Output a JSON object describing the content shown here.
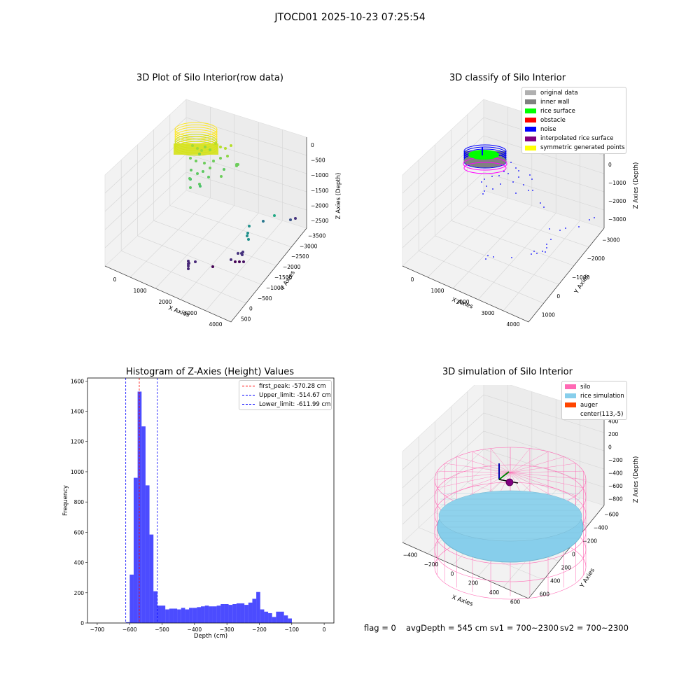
{
  "figure": {
    "suptitle": "JTOCD01 2025-10-23 07:25:54",
    "footer": {
      "flag": "flag = 0",
      "avg": "avgDepth = 545 cm",
      "sv1": "sv1 = 700~2300",
      "sv2": "sv2 = 700~2300"
    }
  },
  "colors": {
    "hist_bar": "#0000ff",
    "peak_line": "#ff0000",
    "limit_line": "#0000ff",
    "silo": "#ff69b4",
    "rice": "#87ceeb",
    "auger": "#ff4500",
    "classify": {
      "original": "#b0b0b0",
      "inner_wall": "#808080",
      "rice_surface": "#00ff00",
      "obstacle": "#ff0000",
      "noise": "#0000ff",
      "interpolated": "#800080",
      "symmetric": "#ffff00"
    }
  },
  "chart_data": [
    {
      "type": "scatter",
      "title": "3D Plot of Silo Interior(row data)",
      "xlabel": "X Axies",
      "ylabel": "Y Axies",
      "zlabel": "Z Axies (Depth)",
      "x_ticks": [
        "0",
        "1000",
        "2000",
        "3000",
        "4000"
      ],
      "y_ticks": [
        "500",
        "0",
        "−500",
        "−1000",
        "−1500",
        "−2000",
        "−2500",
        "−3000",
        "−3500"
      ],
      "z_ticks": [
        "0",
        "−500",
        "−1000",
        "−1500",
        "−2000",
        "−2500"
      ],
      "colormap": "viridis (by depth)"
    },
    {
      "type": "scatter",
      "title": "3D classify of Silo Interior",
      "xlabel": "X Axies",
      "ylabel": "Y Axies",
      "zlabel": "Z Axies (Depth)",
      "x_ticks": [
        "0",
        "1000",
        "2000",
        "3000",
        "4000"
      ],
      "y_ticks": [
        "1000",
        "0",
        "−1000",
        "−2000",
        "−3000"
      ],
      "z_ticks": [
        "1000",
        "0",
        "−1000",
        "−2000",
        "−3000"
      ],
      "legend": [
        {
          "label": "original data",
          "color": "#b0b0b0"
        },
        {
          "label": "inner wall",
          "color": "#808080"
        },
        {
          "label": "rice surface",
          "color": "#00ff00"
        },
        {
          "label": "obstacle",
          "color": "#ff0000"
        },
        {
          "label": "noise",
          "color": "#0000ff"
        },
        {
          "label": "interpolated rice surface",
          "color": "#800080"
        },
        {
          "label": "symmetric generated points",
          "color": "#ffff00"
        }
      ]
    },
    {
      "type": "bar",
      "title": "Histogram of Z-Axies (Height) Values",
      "xlabel": "Depth (cm)",
      "ylabel": "Frequency",
      "xlim": [
        -730,
        30
      ],
      "ylim": [
        0,
        1620
      ],
      "x_ticks": [
        "−700",
        "−600",
        "−500",
        "−400",
        "−300",
        "−200",
        "−100",
        "0"
      ],
      "y_ticks": [
        "0",
        "200",
        "400",
        "600",
        "800",
        "1000",
        "1200",
        "1400",
        "1600"
      ],
      "bin_start": -612,
      "bin_width": 12.2,
      "values": [
        5,
        320,
        960,
        1530,
        1300,
        910,
        585,
        210,
        115,
        115,
        90,
        95,
        95,
        90,
        100,
        90,
        100,
        100,
        105,
        110,
        115,
        110,
        110,
        115,
        125,
        125,
        120,
        125,
        130,
        130,
        120,
        135,
        160,
        205,
        90,
        75,
        65,
        40,
        75,
        75,
        50,
        30
      ],
      "lines": [
        {
          "label": "first_peak: -570.28 cm",
          "x": -570.28,
          "color": "#ff0000"
        },
        {
          "label": "Upper_limit: -514.67 cm",
          "x": -514.67,
          "color": "#0000ff"
        },
        {
          "label": "Lower_limit: -611.99 cm",
          "x": -611.99,
          "color": "#0000ff"
        }
      ]
    },
    {
      "type": "scatter",
      "title": "3D simulation of Silo Interior",
      "xlabel": "X Axies",
      "ylabel": "Y Axies",
      "zlabel": "Z Axies (Depth)",
      "x_ticks": [
        "−400",
        "−200",
        "0",
        "200",
        "400",
        "600"
      ],
      "y_ticks": [
        "600",
        "400",
        "200",
        "0",
        "−200",
        "−400",
        "−600"
      ],
      "z_ticks": [
        "400",
        "200",
        "0",
        "−200",
        "−400",
        "−600",
        "−800"
      ],
      "legend": [
        {
          "label": "silo",
          "color": "#ff69b4"
        },
        {
          "label": "rice simulation",
          "color": "#87ceeb"
        },
        {
          "label": "auger",
          "color": "#ff4500"
        },
        {
          "label": "center(113,-5)",
          "color": "#ffffff"
        }
      ]
    }
  ]
}
